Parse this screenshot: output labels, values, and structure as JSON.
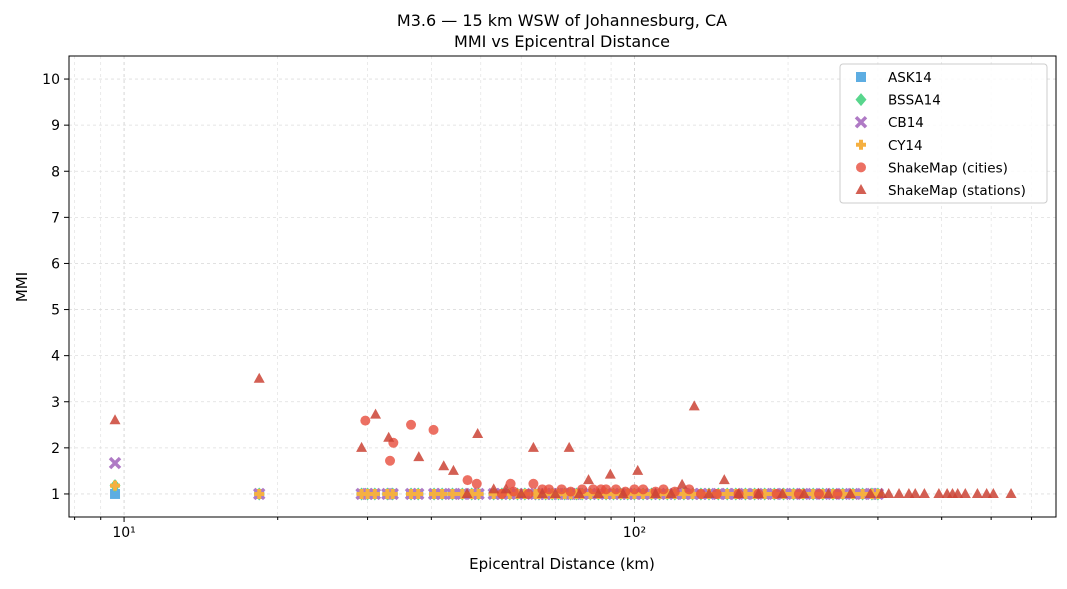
{
  "chart_data": {
    "type": "scatter",
    "title": "M3.6 — 15 km WSW of Johannesburg, CA",
    "subtitle": "MMI vs Epicentral Distance",
    "xlabel": "Epicentral Distance (km)",
    "ylabel": "MMI",
    "xscale": "log",
    "xlim": [
      7.8,
      670
    ],
    "ylim": [
      0.5,
      10.5
    ],
    "x_tick_labels": [
      {
        "value": 10,
        "label": "10¹"
      },
      {
        "value": 100,
        "label": "10²"
      }
    ],
    "y_ticks": [
      1,
      2,
      3,
      4,
      5,
      6,
      7,
      8,
      9,
      10
    ],
    "grid": true,
    "legend_position": "top-right",
    "model_distances": [
      9.6,
      18.4,
      29.2,
      30.0,
      31.0,
      32.8,
      33.6,
      36.5,
      37.7,
      40.5,
      42.0,
      44.0,
      46.0,
      48.0,
      49.5,
      53,
      55,
      57,
      59,
      61,
      64,
      65,
      67,
      69,
      71,
      73,
      75,
      77,
      79,
      82,
      85,
      88,
      91,
      94,
      97,
      100,
      104,
      108,
      112,
      116,
      120,
      125,
      130,
      135,
      140,
      146,
      152,
      158,
      165,
      172,
      180,
      188,
      196,
      205,
      214,
      224,
      234,
      245,
      256,
      268,
      280,
      292,
      300
    ],
    "series": [
      {
        "name": "ASK14",
        "marker": "square",
        "color": "#5DADE2",
        "first_value": 1.0,
        "rest_value": 1.0
      },
      {
        "name": "BSSA14",
        "marker": "diamond",
        "color": "#58D68D",
        "first_value": 1.18,
        "rest_value": 1.0
      },
      {
        "name": "CB14",
        "marker": "x",
        "color": "#AF7AC5",
        "first_value": 1.67,
        "rest_value": 1.0
      },
      {
        "name": "CY14",
        "marker": "plus",
        "color": "#F5B041",
        "first_value": 1.18,
        "rest_value": 1.0
      },
      {
        "name": "ShakeMap (cities)",
        "marker": "circle",
        "color": "#E74C3C",
        "points": [
          [
            29.7,
            2.59
          ],
          [
            33.2,
            1.72
          ],
          [
            33.7,
            2.11
          ],
          [
            36.5,
            2.5
          ],
          [
            40.4,
            2.39
          ],
          [
            47.1,
            1.3
          ],
          [
            49.1,
            1.22
          ],
          [
            57.2,
            1.22
          ],
          [
            63.4,
            1.22
          ],
          [
            55,
            1.0
          ],
          [
            58,
            1.05
          ],
          [
            62,
            1.0
          ],
          [
            66,
            1.1
          ],
          [
            68,
            1.1
          ],
          [
            72,
            1.1
          ],
          [
            75,
            1.05
          ],
          [
            79,
            1.1
          ],
          [
            83,
            1.1
          ],
          [
            86,
            1.1
          ],
          [
            88,
            1.1
          ],
          [
            92,
            1.1
          ],
          [
            96,
            1.05
          ],
          [
            100,
            1.1
          ],
          [
            104,
            1.1
          ],
          [
            110,
            1.05
          ],
          [
            114,
            1.1
          ],
          [
            120,
            1.05
          ],
          [
            128,
            1.1
          ],
          [
            135,
            1.0
          ],
          [
            145,
            1.0
          ],
          [
            160,
            1.0
          ],
          [
            175,
            1.0
          ],
          [
            190,
            1.0
          ],
          [
            210,
            1.0
          ],
          [
            230,
            1.0
          ],
          [
            250,
            1.0
          ]
        ]
      },
      {
        "name": "ShakeMap (stations)",
        "marker": "triangle",
        "color": "#CB4335",
        "points": [
          [
            9.6,
            2.6
          ],
          [
            18.4,
            3.5
          ],
          [
            29.2,
            2.0
          ],
          [
            31.1,
            2.72
          ],
          [
            33.0,
            2.22
          ],
          [
            37.8,
            1.8
          ],
          [
            42.3,
            1.6
          ],
          [
            44.2,
            1.5
          ],
          [
            47,
            1.0
          ],
          [
            49.3,
            2.3
          ],
          [
            53,
            1.1
          ],
          [
            56,
            1.1
          ],
          [
            60,
            1.0
          ],
          [
            63.4,
            2.0
          ],
          [
            66,
            1.0
          ],
          [
            70,
            1.0
          ],
          [
            74.5,
            2.0
          ],
          [
            78,
            1.0
          ],
          [
            81.3,
            1.3
          ],
          [
            85,
            1.0
          ],
          [
            89.7,
            1.42
          ],
          [
            95,
            1.0
          ],
          [
            101.5,
            1.5
          ],
          [
            110,
            1.0
          ],
          [
            118,
            1.0
          ],
          [
            124,
            1.2
          ],
          [
            131,
            2.9
          ],
          [
            140,
            1.0
          ],
          [
            150,
            1.3
          ],
          [
            160,
            1.0
          ],
          [
            175,
            1.0
          ],
          [
            195,
            1.0
          ],
          [
            215,
            1.0
          ],
          [
            240,
            1.0
          ],
          [
            265,
            1.0
          ],
          [
            290,
            1.0
          ],
          [
            305,
            1.0
          ],
          [
            315,
            1.0
          ],
          [
            330,
            1.0
          ],
          [
            345,
            1.0
          ],
          [
            355,
            1.0
          ],
          [
            370,
            1.0
          ],
          [
            395,
            1.0
          ],
          [
            410,
            1.0
          ],
          [
            420,
            1.0
          ],
          [
            430,
            1.0
          ],
          [
            445,
            1.0
          ],
          [
            470,
            1.0
          ],
          [
            490,
            1.0
          ],
          [
            505,
            1.0
          ],
          [
            547,
            1.0
          ]
        ]
      }
    ]
  }
}
